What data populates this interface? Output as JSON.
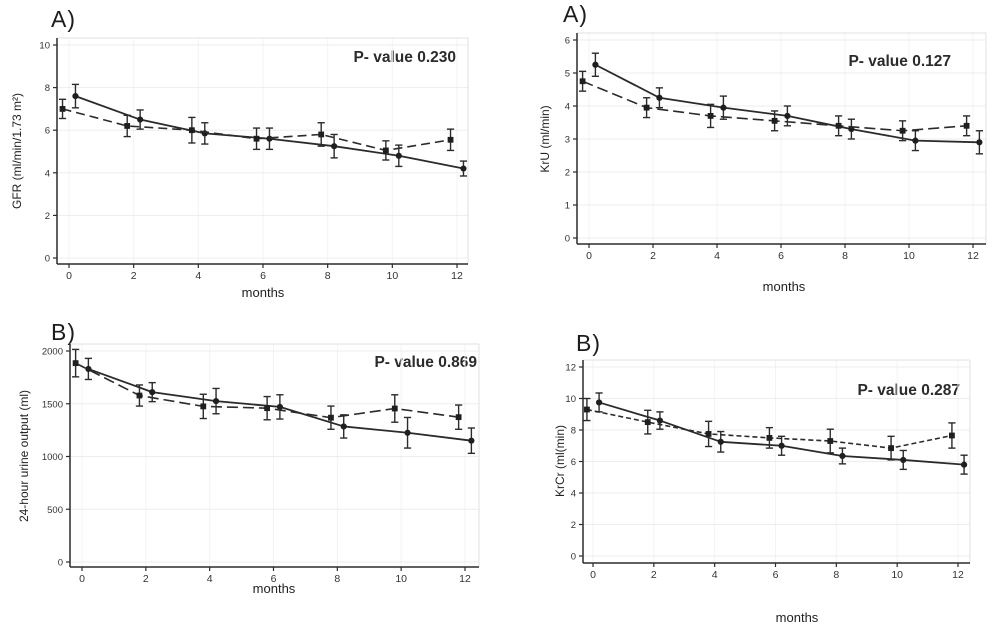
{
  "figure": {
    "background": "#ffffff",
    "line_color": "#2b2b2b",
    "marker_color": "#1f1f1f",
    "grid_color": "#ededed",
    "grid_color_vertical": "#f3f3f3",
    "frame_color": "#e1e1e1",
    "tick_text_color": "#333333"
  },
  "chart_data": [
    {
      "id": "gfr",
      "type": "line",
      "panel_label": "A)",
      "p_value": "P- value 0.230",
      "ylabel": "GFR (ml/min/1.73 m²)",
      "xlabel": "months",
      "ylim": [
        0,
        10
      ],
      "yticks": [
        0,
        2,
        4,
        6,
        8,
        10
      ],
      "xticks": [
        0,
        2,
        4,
        6,
        8,
        10,
        12
      ],
      "grid": true,
      "legend": "none",
      "series": [
        {
          "name": "solid-circle",
          "line": "solid",
          "marker": "circle",
          "x": [
            0.2,
            2.2,
            4.2,
            6.2,
            8.2,
            10.2,
            12.2
          ],
          "y": [
            7.6,
            6.5,
            5.85,
            5.6,
            5.25,
            4.8,
            4.2
          ],
          "err": [
            0.55,
            0.45,
            0.5,
            0.5,
            0.55,
            0.5,
            0.35
          ]
        },
        {
          "name": "dashed-square",
          "line": "dashed",
          "marker": "square",
          "x": [
            -0.2,
            1.8,
            3.8,
            5.8,
            7.8,
            9.8,
            11.8
          ],
          "y": [
            7.0,
            6.2,
            6.0,
            5.6,
            5.8,
            5.05,
            5.55
          ],
          "err": [
            0.45,
            0.5,
            0.6,
            0.5,
            0.55,
            0.45,
            0.5
          ]
        }
      ]
    },
    {
      "id": "kru",
      "type": "line",
      "panel_label": "A)",
      "p_value": "P- value 0.127",
      "ylabel": "KrU (ml/min)",
      "xlabel": "months",
      "ylim": [
        0,
        6
      ],
      "yticks": [
        0,
        1,
        2,
        3,
        4,
        5,
        6
      ],
      "xticks": [
        0,
        2,
        4,
        6,
        8,
        10,
        12
      ],
      "grid": true,
      "legend": "none",
      "series": [
        {
          "name": "solid-circle",
          "line": "solid",
          "marker": "circle",
          "x": [
            0.2,
            2.2,
            4.2,
            6.2,
            8.2,
            10.2,
            12.2
          ],
          "y": [
            5.25,
            4.25,
            3.95,
            3.7,
            3.3,
            2.95,
            2.9
          ],
          "err": [
            0.35,
            0.3,
            0.35,
            0.3,
            0.3,
            0.3,
            0.35
          ]
        },
        {
          "name": "dashed-square",
          "line": "dashed",
          "marker": "square",
          "x": [
            -0.2,
            1.8,
            3.8,
            5.8,
            7.8,
            9.8,
            11.8
          ],
          "y": [
            4.75,
            3.95,
            3.7,
            3.55,
            3.4,
            3.25,
            3.4
          ],
          "err": [
            0.3,
            0.3,
            0.35,
            0.3,
            0.3,
            0.3,
            0.3
          ]
        }
      ]
    },
    {
      "id": "urine-output",
      "type": "line",
      "panel_label": "B)",
      "p_value": "P- value 0.869",
      "ylabel": "24-hour urine output (ml)",
      "xlabel": "months",
      "ylim": [
        0,
        2000
      ],
      "yticks": [
        0,
        500,
        1000,
        1500,
        2000
      ],
      "xticks": [
        0,
        2,
        4,
        6,
        8,
        10,
        12
      ],
      "grid": true,
      "legend": "none",
      "series": [
        {
          "name": "solid-circle",
          "line": "solid",
          "marker": "circle",
          "x": [
            0.2,
            2.2,
            4.2,
            6.2,
            8.2,
            10.2,
            12.2
          ],
          "y": [
            1830,
            1610,
            1525,
            1470,
            1285,
            1225,
            1150
          ],
          "err": [
            100,
            90,
            120,
            115,
            110,
            145,
            120
          ]
        },
        {
          "name": "dashed-square",
          "line": "dashed",
          "marker": "square",
          "x": [
            -0.2,
            1.8,
            3.8,
            5.8,
            7.8,
            9.8,
            11.8
          ],
          "y": [
            1885,
            1578,
            1475,
            1458,
            1368,
            1455,
            1373
          ],
          "err": [
            130,
            100,
            115,
            110,
            110,
            130,
            115
          ]
        }
      ]
    },
    {
      "id": "krcr",
      "type": "line",
      "panel_label": "B)",
      "p_value": "P- value 0.287",
      "ylabel": "KrCr (ml(min)",
      "xlabel": "months",
      "ylim": [
        0,
        12
      ],
      "yticks": [
        0,
        2,
        4,
        6,
        8,
        10,
        12
      ],
      "xticks": [
        0,
        2,
        4,
        6,
        8,
        10,
        12
      ],
      "grid": true,
      "legend": "none",
      "series": [
        {
          "name": "solid-circle",
          "line": "solid",
          "marker": "circle",
          "x": [
            0.2,
            2.2,
            4.2,
            6.2,
            8.2,
            10.2,
            12.2
          ],
          "y": [
            9.75,
            8.6,
            7.25,
            7.0,
            6.35,
            6.1,
            5.8
          ],
          "err": [
            0.6,
            0.55,
            0.65,
            0.6,
            0.5,
            0.6,
            0.6
          ]
        },
        {
          "name": "dashed-square",
          "line": "dashed",
          "marker": "square",
          "x": [
            -0.2,
            1.8,
            3.8,
            5.8,
            7.8,
            9.8,
            11.8
          ],
          "y": [
            9.3,
            8.5,
            7.75,
            7.5,
            7.3,
            6.85,
            7.65
          ],
          "err": [
            0.7,
            0.75,
            0.8,
            0.65,
            0.75,
            0.75,
            0.8
          ]
        }
      ]
    }
  ]
}
